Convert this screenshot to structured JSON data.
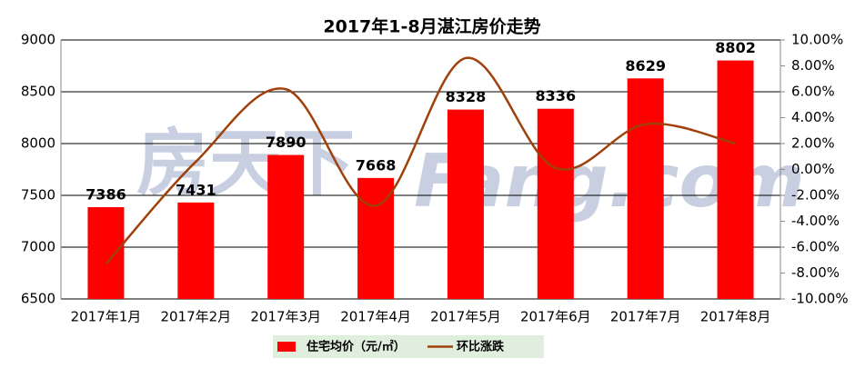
{
  "chart_data": {
    "type": "bar",
    "title": "2017年1-8月湛江房价走势",
    "categories": [
      "2017年1月",
      "2017年2月",
      "2017年3月",
      "2017年4月",
      "2017年5月",
      "2017年6月",
      "2017年7月",
      "2017年8月"
    ],
    "series": [
      {
        "name": "住宅均价（元/㎡）",
        "type": "bar",
        "color": "#ff0000",
        "values": [
          7386,
          7431,
          7890,
          7668,
          8328,
          8336,
          8629,
          8802
        ]
      },
      {
        "name": "环比涨跌",
        "type": "line",
        "axis": "y2",
        "color": "#a0400a",
        "values": [
          -7.3,
          0.6,
          6.2,
          -2.8,
          8.6,
          0.1,
          3.5,
          2.0
        ]
      }
    ],
    "ylim": [
      6500,
      9000
    ],
    "yticks": [
      6500,
      7000,
      7500,
      8000,
      8500,
      9000
    ],
    "y2lim": [
      -10,
      10
    ],
    "y2ticks": [
      {
        "value": -10,
        "label": "-10.00%"
      },
      {
        "value": -8,
        "label": "-8.00%"
      },
      {
        "value": -6,
        "label": "-6.00%"
      },
      {
        "value": -4,
        "label": "-4.00%"
      },
      {
        "value": -2,
        "label": "-2.00%"
      },
      {
        "value": 0,
        "label": "0.00%"
      },
      {
        "value": 2,
        "label": "2.00%"
      },
      {
        "value": 4,
        "label": "4.00%"
      },
      {
        "value": 6,
        "label": "6.00%"
      },
      {
        "value": 8,
        "label": "8.00%"
      },
      {
        "value": 10,
        "label": "10.00%"
      }
    ],
    "grid": true,
    "watermark": [
      "房天下",
      "Fang.com"
    ]
  }
}
